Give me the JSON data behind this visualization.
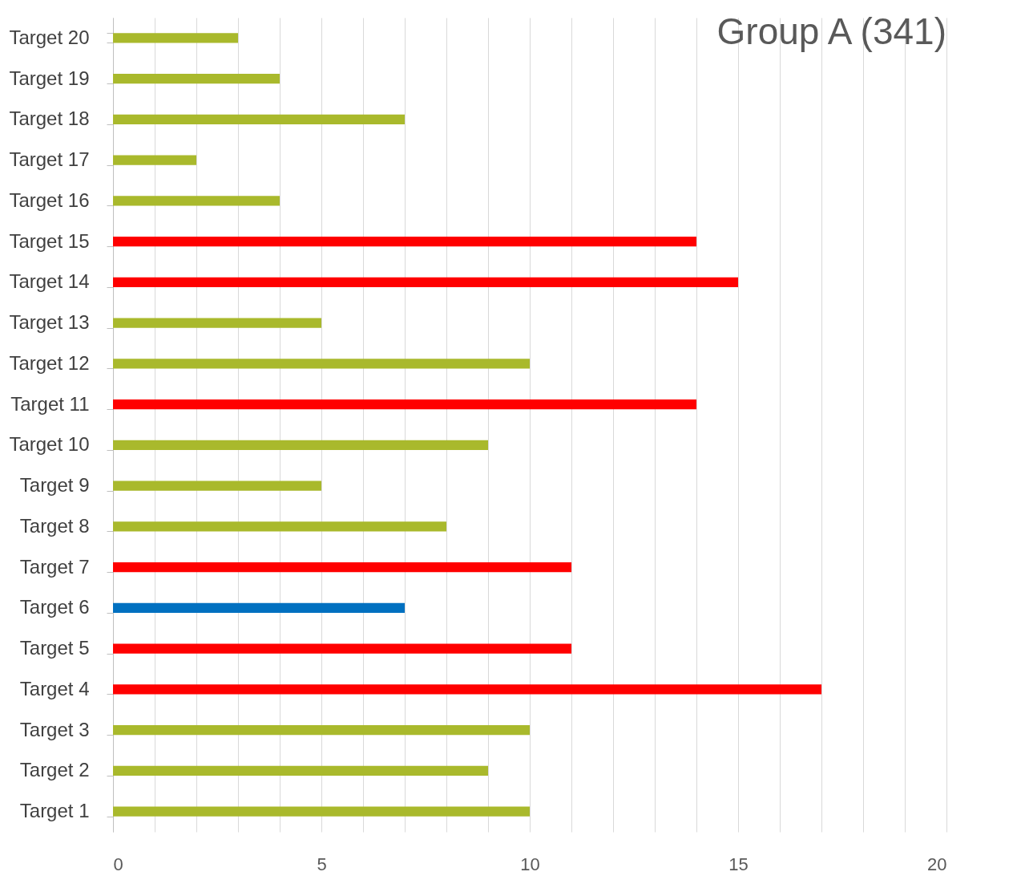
{
  "chart_data": {
    "type": "bar",
    "orientation": "horizontal",
    "title": "Group A (341)",
    "categories": [
      "Target 20",
      "Target 19",
      "Target 18",
      "Target 17",
      "Target 16",
      "Target 15",
      "Target 14",
      "Target 13",
      "Target 12",
      "Target 11",
      "Target 10",
      "Target 9",
      "Target 8",
      "Target 7",
      "Target 6",
      "Target 5",
      "Target 4",
      "Target 3",
      "Target 2",
      "Target 1"
    ],
    "values": [
      3,
      4,
      7,
      2,
      4,
      14,
      15,
      5,
      10,
      14,
      9,
      5,
      8,
      11,
      7,
      11,
      17,
      10,
      9,
      10
    ],
    "colors": [
      "#a9b92c",
      "#a9b92c",
      "#a9b92c",
      "#a9b92c",
      "#a9b92c",
      "#ff0000",
      "#ff0000",
      "#a9b92c",
      "#a9b92c",
      "#ff0000",
      "#a9b92c",
      "#a9b92c",
      "#a9b92c",
      "#ff0000",
      "#0070c0",
      "#ff0000",
      "#ff0000",
      "#a9b92c",
      "#a9b92c",
      "#a9b92c"
    ],
    "xlim": [
      0,
      20
    ],
    "xticks": [
      0,
      {
        "value": 1,
        "label": null
      },
      {
        "value": 2,
        "label": null
      },
      {
        "value": 3,
        "label": null
      },
      {
        "value": 4,
        "label": null
      },
      5,
      {
        "value": 6,
        "label": null
      },
      {
        "value": 7,
        "label": null
      },
      {
        "value": 8,
        "label": null
      },
      {
        "value": 9,
        "label": null
      },
      10,
      {
        "value": 11,
        "label": null
      },
      {
        "value": 12,
        "label": null
      },
      {
        "value": 13,
        "label": null
      },
      {
        "value": 14,
        "label": null
      },
      15,
      {
        "value": 16,
        "label": null
      },
      {
        "value": 17,
        "label": null
      },
      {
        "value": 18,
        "label": null
      },
      {
        "value": 19,
        "label": null
      },
      20
    ],
    "grid": "x"
  }
}
